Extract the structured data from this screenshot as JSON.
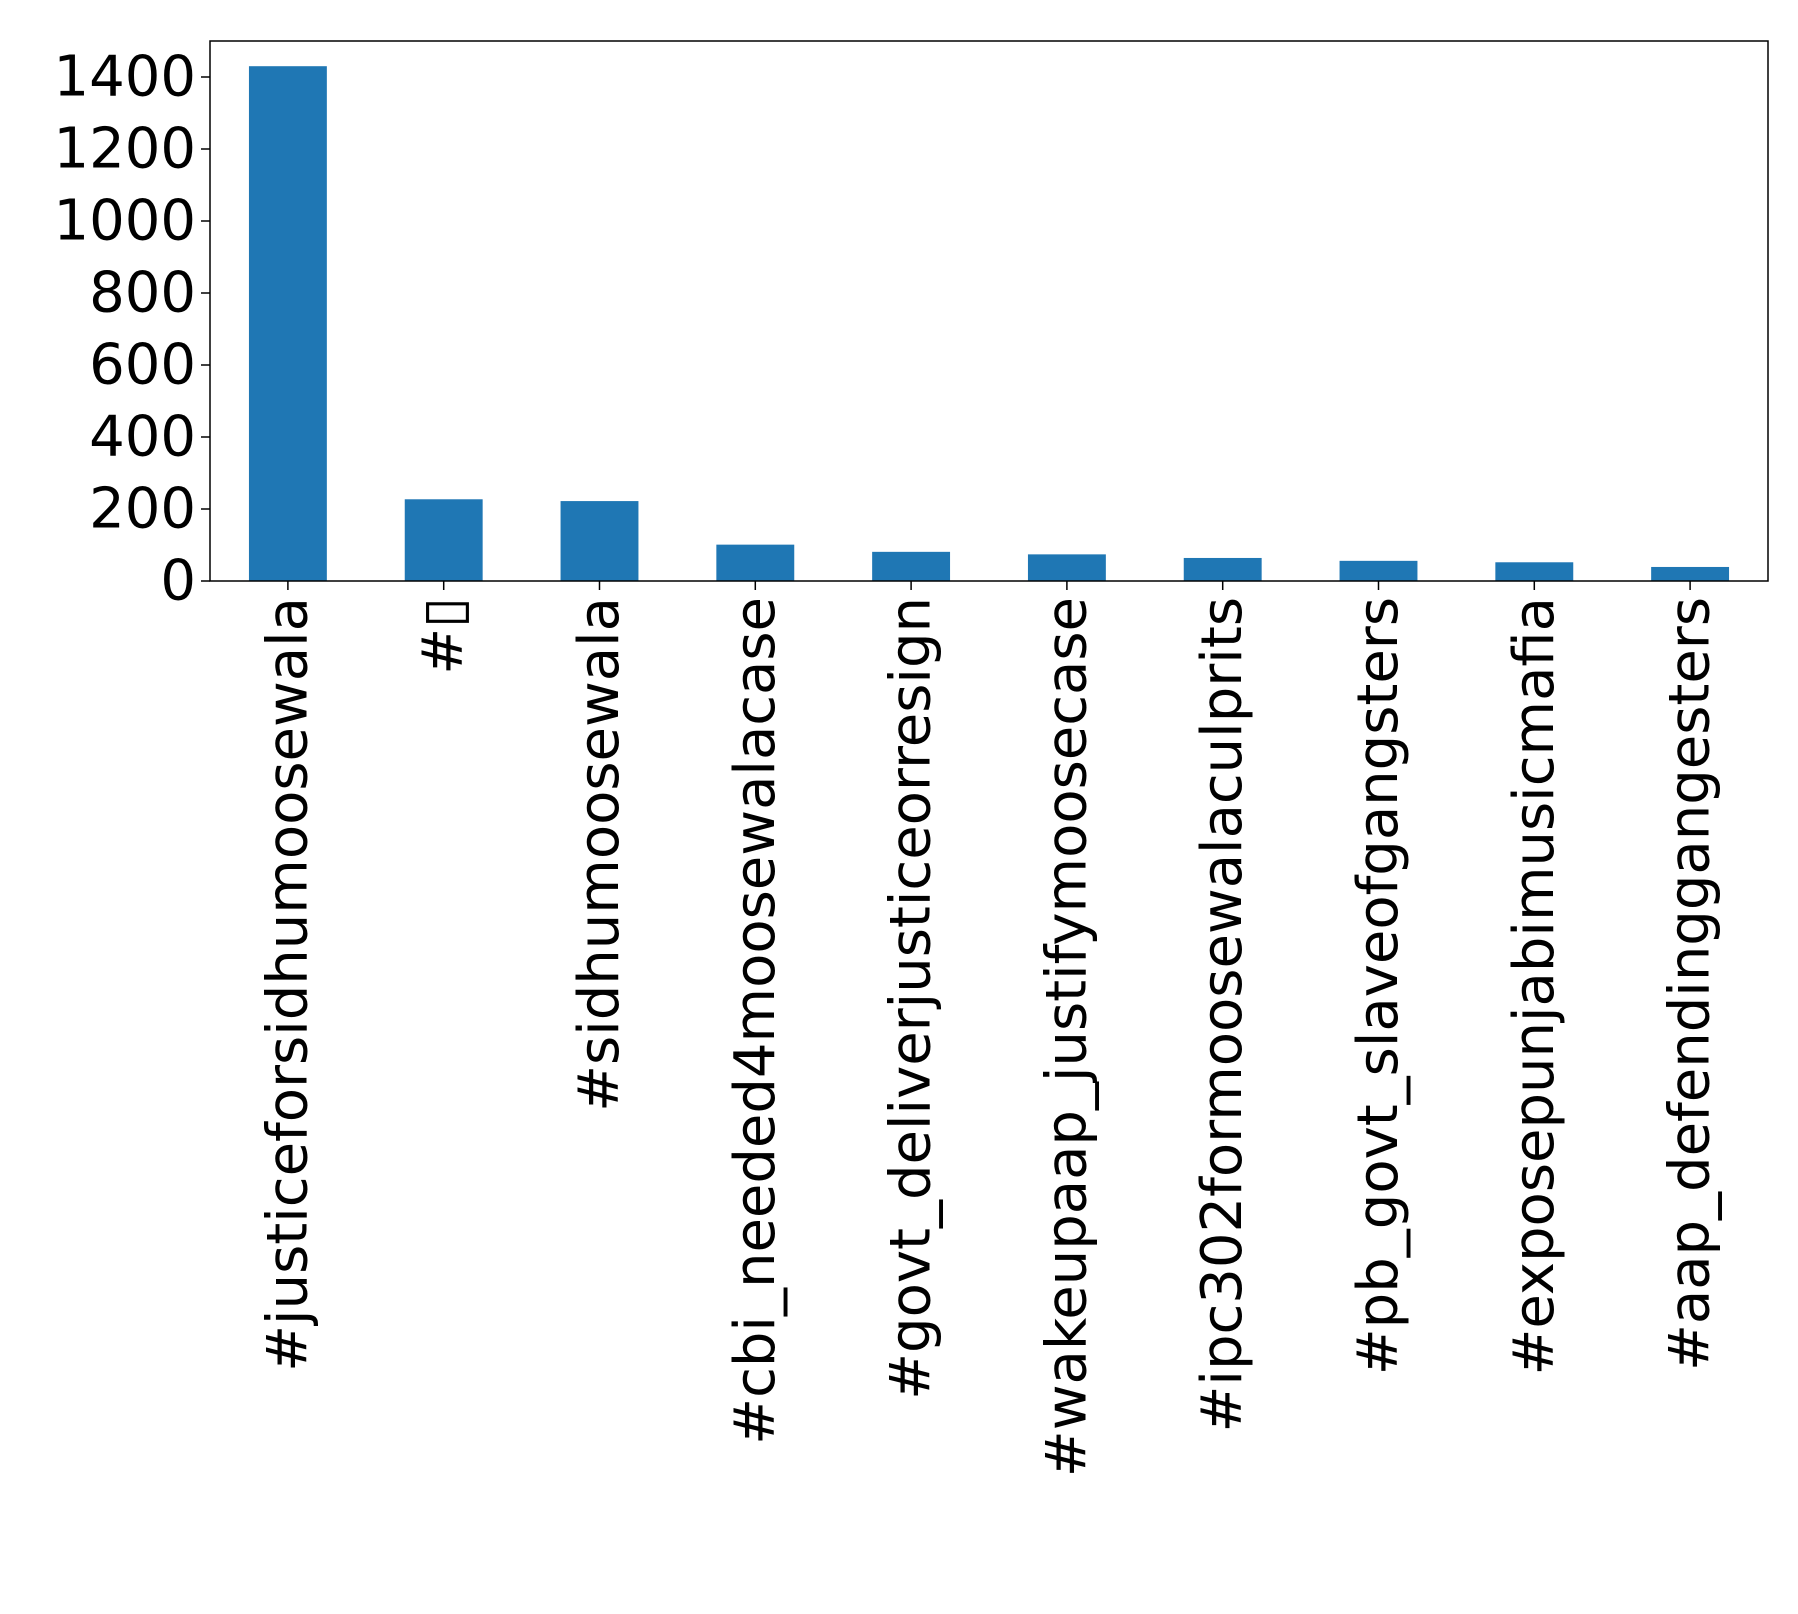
{
  "chart_data": {
    "type": "bar",
    "title": "",
    "xlabel": "",
    "ylabel": "",
    "categories": [
      "#justiceforsidhumoosewala",
      "#▯",
      "#sidhumoosewala",
      "#cbi_needed4moosewalacase",
      "#govt_deliverjusticeorresign",
      "#wakeupaap_justifymoosecase",
      "#ipc302formoosewalaculprits",
      "#pb_govt_slaveofgangsters",
      "#exposepunjabimusicmafia",
      "#aap_defendinggangesters"
    ],
    "values": [
      1430,
      227,
      222,
      101,
      81,
      74,
      64,
      56,
      52,
      39
    ],
    "ylim": [
      0,
      1500
    ],
    "yticks": [
      0,
      200,
      400,
      600,
      800,
      1000,
      1200,
      1400
    ],
    "grid": false,
    "legend": "none",
    "bar_color": "#1f77b4"
  }
}
